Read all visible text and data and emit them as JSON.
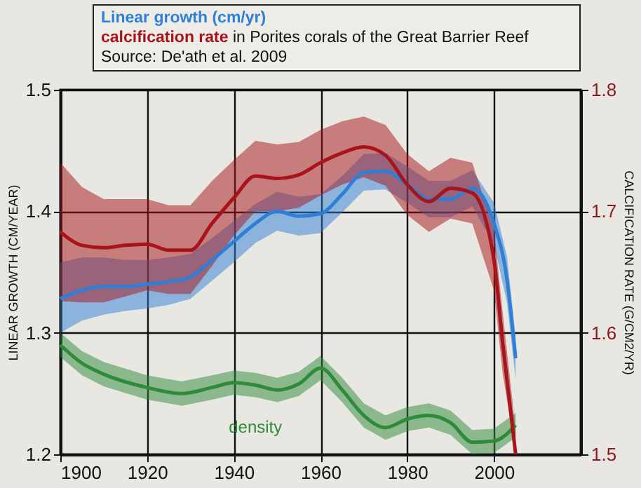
{
  "chart_data": {
    "type": "line",
    "title": "in Porites corals of the Great Barrier Reef",
    "ylabel": "LINEAR GROWTH (CM/YEAR)",
    "y2label": "CALCIFICATION RATE (G/CM2/YR)",
    "annotations": [
      "Source: De'ath et al. 2009"
    ],
    "xlim": [
      1900,
      2020
    ],
    "xticks": [
      1900,
      1920,
      1940,
      1960,
      1980,
      2000
    ],
    "ylim": [
      1.2,
      1.5
    ],
    "yticks": [
      1.2,
      1.3,
      1.4,
      1.5
    ],
    "y2lim": [
      1.5,
      1.8
    ],
    "y2ticks": [
      1.5,
      1.6,
      1.7,
      1.8
    ],
    "grid": true,
    "legend": "top",
    "series": [
      {
        "name": "Linear growth (cm/yr)",
        "color": "#2f7fd6",
        "x": [
          1900,
          1905,
          1910,
          1915,
          1920,
          1925,
          1930,
          1935,
          1940,
          1945,
          1950,
          1955,
          1960,
          1965,
          1970,
          1975,
          1980,
          1985,
          1990,
          1995,
          2000,
          2003,
          2005
        ],
        "values": [
          1.328,
          1.335,
          1.338,
          1.338,
          1.34,
          1.342,
          1.346,
          1.36,
          1.375,
          1.39,
          1.4,
          1.396,
          1.398,
          1.414,
          1.432,
          1.433,
          1.422,
          1.41,
          1.41,
          1.419,
          1.39,
          1.344,
          1.279
        ],
        "lower": [
          1.3,
          1.31,
          1.315,
          1.318,
          1.32,
          1.323,
          1.328,
          1.343,
          1.358,
          1.374,
          1.384,
          1.38,
          1.382,
          1.399,
          1.417,
          1.418,
          1.407,
          1.395,
          1.395,
          1.404,
          1.373,
          1.325,
          1.262
        ],
        "upper": [
          1.358,
          1.362,
          1.362,
          1.36,
          1.36,
          1.362,
          1.365,
          1.378,
          1.392,
          1.406,
          1.416,
          1.412,
          1.414,
          1.429,
          1.447,
          1.448,
          1.437,
          1.425,
          1.425,
          1.434,
          1.407,
          1.363,
          1.296
        ]
      },
      {
        "name": "calcification rate",
        "color": "#a8141a",
        "axis": "y2",
        "x": [
          1900,
          1905,
          1910,
          1915,
          1920,
          1925,
          1930,
          1935,
          1940,
          1945,
          1950,
          1955,
          1960,
          1965,
          1970,
          1975,
          1980,
          1985,
          1990,
          1995,
          2000,
          2002,
          2005
        ],
        "values": [
          1.683,
          1.672,
          1.67,
          1.672,
          1.673,
          1.668,
          1.668,
          1.69,
          1.711,
          1.729,
          1.727,
          1.73,
          1.74,
          1.748,
          1.753,
          1.746,
          1.722,
          1.708,
          1.719,
          1.715,
          1.66,
          1.592,
          1.5
        ],
        "lower": [
          1.626,
          1.625,
          1.625,
          1.63,
          1.635,
          1.632,
          1.632,
          1.655,
          1.68,
          1.7,
          1.7,
          1.703,
          1.713,
          1.722,
          1.728,
          1.721,
          1.697,
          1.683,
          1.694,
          1.69,
          1.635,
          1.567,
          1.5
        ],
        "upper": [
          1.74,
          1.72,
          1.71,
          1.71,
          1.71,
          1.705,
          1.705,
          1.725,
          1.742,
          1.758,
          1.755,
          1.757,
          1.767,
          1.774,
          1.778,
          1.771,
          1.747,
          1.733,
          1.744,
          1.74,
          1.685,
          1.617,
          1.52
        ]
      },
      {
        "name": "density",
        "color": "#2e8b3a",
        "x": [
          1900,
          1905,
          1910,
          1920,
          1928,
          1935,
          1940,
          1945,
          1950,
          1955,
          1960,
          1965,
          1970,
          1975,
          1980,
          1985,
          1990,
          1995,
          2000,
          2005
        ],
        "values": [
          1.29,
          1.275,
          1.266,
          1.255,
          1.25,
          1.255,
          1.259,
          1.257,
          1.253,
          1.258,
          1.271,
          1.253,
          1.232,
          1.222,
          1.229,
          1.232,
          1.226,
          1.21,
          1.211,
          1.224
        ],
        "lower": [
          1.28,
          1.265,
          1.256,
          1.245,
          1.24,
          1.245,
          1.249,
          1.247,
          1.243,
          1.248,
          1.261,
          1.243,
          1.222,
          1.212,
          1.219,
          1.222,
          1.216,
          1.2,
          1.201,
          1.214
        ],
        "upper": [
          1.3,
          1.285,
          1.276,
          1.265,
          1.26,
          1.265,
          1.269,
          1.267,
          1.263,
          1.268,
          1.281,
          1.263,
          1.242,
          1.232,
          1.239,
          1.242,
          1.236,
          1.22,
          1.221,
          1.234
        ]
      }
    ]
  }
}
